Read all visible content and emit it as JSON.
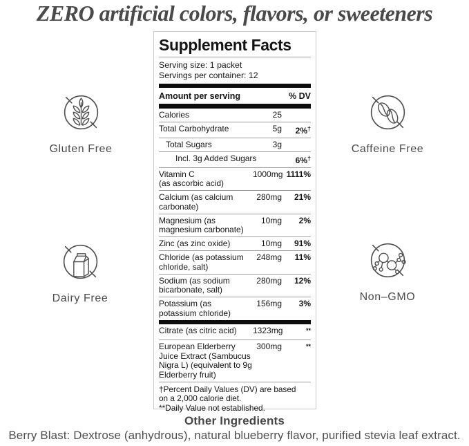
{
  "headline": "ZERO artificial colors, flavors, or sweeteners",
  "badges": [
    {
      "label": "Gluten Free",
      "icon": "wheat-icon"
    },
    {
      "label": "Caffeine Free",
      "icon": "coffee-beans-icon"
    },
    {
      "label": "Dairy Free",
      "icon": "milk-carton-icon"
    },
    {
      "label": "Non–GMO",
      "icon": "molecule-icon"
    }
  ],
  "supplement_facts": {
    "title": "Supplement Facts",
    "serving_size": "Serving size: 1 packet",
    "servings_per_container": "Servings per container: 12",
    "header": {
      "amount": "Amount per serving",
      "dv": "% DV"
    },
    "rows": [
      {
        "name": "Calories",
        "amount": "25",
        "dv": "",
        "dv_note": "",
        "indent": 0
      },
      {
        "name": "Total Carbohydrate",
        "amount": "5g",
        "dv": "2%",
        "dv_note": "†",
        "indent": 0
      },
      {
        "name": "Total Sugars",
        "amount": "3g",
        "dv": "",
        "dv_note": "",
        "indent": 1
      },
      {
        "name": "Incl. 3g Added Sugars",
        "amount": "",
        "dv": "6%",
        "dv_note": "†",
        "indent": 2
      },
      {
        "name": "Vitamin C\n(as ascorbic acid)",
        "amount": "1000mg",
        "dv": "1111%",
        "dv_note": "",
        "indent": 0
      },
      {
        "name": "Calcium (as calcium\ncarbonate)",
        "amount": "280mg",
        "dv": "21%",
        "dv_note": "",
        "indent": 0
      },
      {
        "name": "Magnesium (as\nmagnesium carbonate)",
        "amount": "10mg",
        "dv": "2%",
        "dv_note": "",
        "indent": 0
      },
      {
        "name": "Zinc (as zinc oxide)",
        "amount": "10mg",
        "dv": "91%",
        "dv_note": "",
        "indent": 0
      },
      {
        "name": "Chloride (as potassium\nchloride, salt)",
        "amount": "248mg",
        "dv": "11%",
        "dv_note": "",
        "indent": 0
      },
      {
        "name": "Sodium (as sodium\nbicarbonate, salt)",
        "amount": "280mg",
        "dv": "12%",
        "dv_note": "",
        "indent": 0
      },
      {
        "name": "Potassium (as\npotassium chloride)",
        "amount": "156mg",
        "dv": "3%",
        "dv_note": "",
        "indent": 0
      }
    ],
    "secondary_rows": [
      {
        "name": "Citrate (as citric acid)",
        "amount": "1323mg",
        "dv": "",
        "dv_note": "**",
        "indent": 0
      },
      {
        "name": "European Elderberry\nJuice Extract (Sambucus\nNigra L) (equivalent to 9g\nElderberry fruit)",
        "amount": "300mg",
        "dv": "",
        "dv_note": "**",
        "indent": 0
      }
    ],
    "footnotes": [
      "†Percent Daily Values (DV) are based\non a 2,000 calorie diet.",
      "**Daily Value not established."
    ]
  },
  "other_ingredients": {
    "title": "Other Ingredients",
    "text": "Berry Blast: Dextrose (anhydrous), natural blueberry flavor, purified stevia leaf extract."
  },
  "colors": {
    "headline_text": "#4a4a4a",
    "panel_text": "#141414",
    "panel_border": "#c9c9c9",
    "rule_line": "#9b9b9b",
    "thick_bar": "#0d0d0d",
    "icon_stroke": "#4f4f4f"
  }
}
